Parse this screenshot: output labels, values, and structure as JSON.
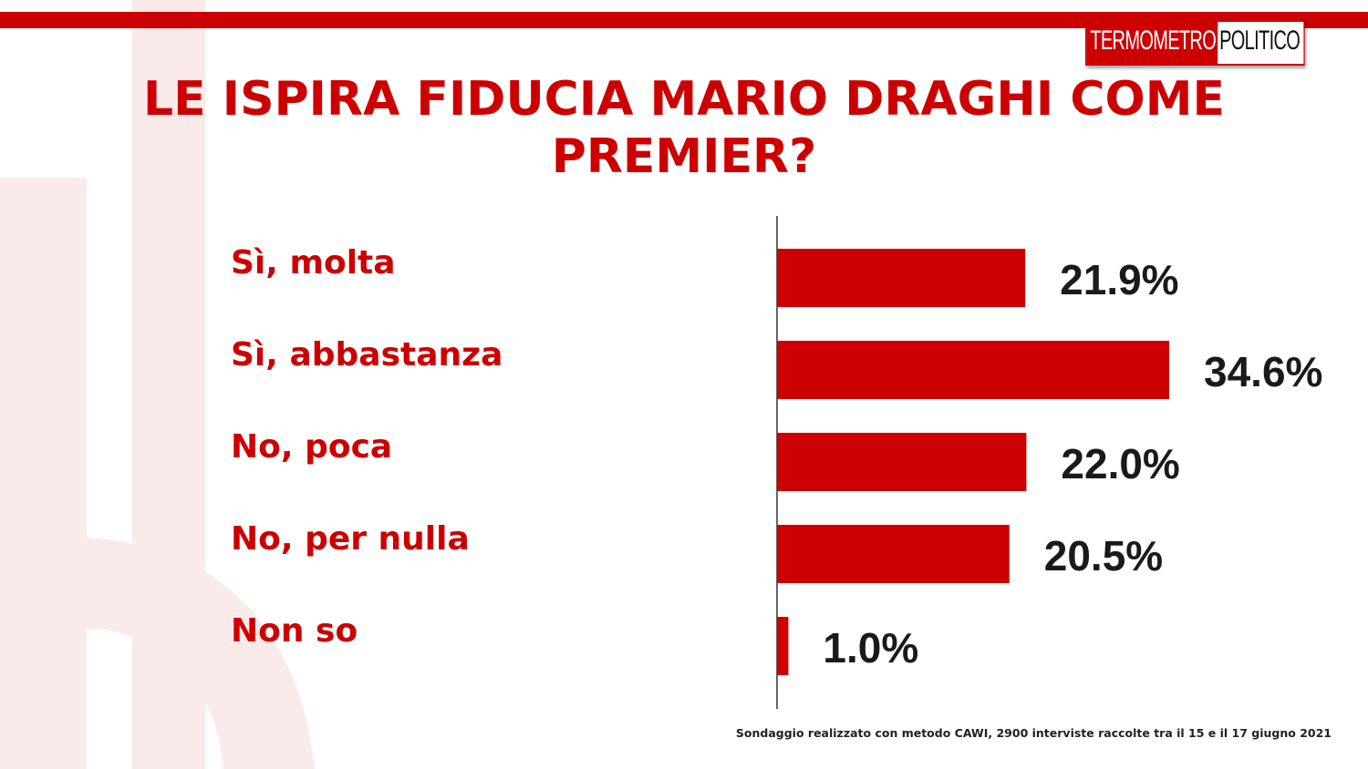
{
  "logo": {
    "part1": "TERMOMETRO",
    "part2": "POLITICO"
  },
  "title": "LE ISPIRA FIDUCIA MARIO DRAGHI COME PREMIER?",
  "colors": {
    "brand_red": "#cc0000",
    "watermark": "#fbeaea",
    "value_text": "#1a1a1a"
  },
  "chart_data": {
    "type": "bar",
    "orientation": "horizontal",
    "categories": [
      "Sì, molta",
      "Sì, abbastanza",
      "No, poca",
      "No, per nulla",
      "Non so"
    ],
    "values": [
      21.9,
      34.6,
      22.0,
      20.5,
      1.0
    ],
    "value_labels": [
      "21.9%",
      "34.6%",
      "22.0%",
      "20.5%",
      "1.0%"
    ],
    "title": "LE ISPIRA FIDUCIA MARIO DRAGHI COME PREMIER?",
    "xlabel": "",
    "ylabel": "",
    "unit": "%",
    "xlim": [
      0,
      34.6
    ],
    "grid": false,
    "legend": "none"
  },
  "footnote": "Sondaggio realizzato con metodo CAWI, 2900 interviste raccolte tra il 15  e il 17 giugno 2021"
}
